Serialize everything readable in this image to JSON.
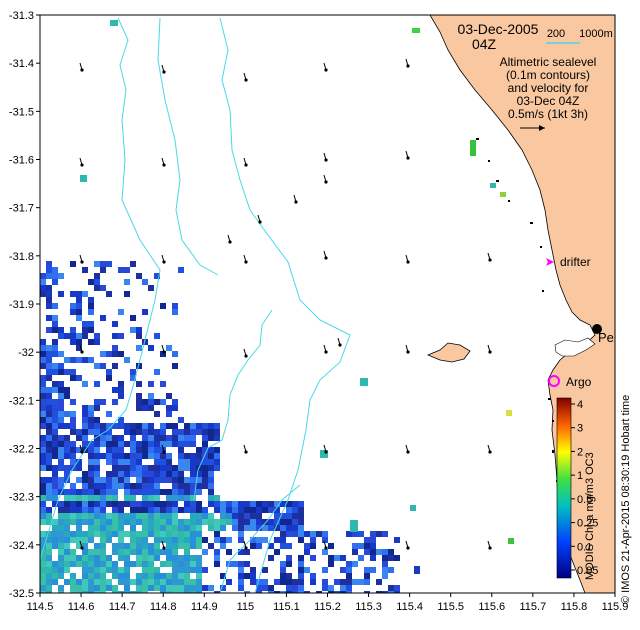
{
  "map": {
    "date": "03-Dec-2005",
    "time": "04Z",
    "lon_ticks": [
      "114.5",
      "114.6",
      "114.7",
      "114.8",
      "114.9",
      "115",
      "115.1",
      "115.2",
      "115.3",
      "115.4",
      "115.5",
      "115.6",
      "115.7",
      "115.8",
      "115.9"
    ],
    "lat_ticks": [
      "-31.3",
      "-31.4",
      "-31.5",
      "-31.6",
      "-31.7",
      "-31.8",
      "-31.9",
      "-32",
      "-32.1",
      "-32.2",
      "-32.3",
      "-32.4",
      "-32.5"
    ],
    "lon_range": [
      114.5,
      115.9
    ],
    "lat_range": [
      -32.5,
      -31.3
    ],
    "bathy_legend": {
      "shallow": "200",
      "deep": "1000m"
    },
    "description_lines": [
      "Altimetric sealevel",
      "(0.1m contours)",
      "and velocity for",
      "03-Dec 04Z",
      "0.5m/s (1kt 3h)"
    ],
    "labels": {
      "drifter": "drifter",
      "argo": "Argo",
      "perth": "Perth"
    },
    "colorbar": {
      "title": "MODIS Chl-a mg/m3 OC3",
      "ticks": [
        "4",
        "3",
        "2",
        "1",
        "0.5",
        "0.25",
        "0.1",
        "0.05"
      ]
    },
    "credit": "© IMOS 21-Apr-2015 08:30:19 Hobart time",
    "colors": {
      "land": "#f9c8a0",
      "contour": "#48d8e8",
      "drifter": "#ff00ff",
      "argo": "#ff00ff",
      "chl_low": "#1838c8",
      "chl_mid": "#30b8b0",
      "chl_high": "#b01818"
    }
  }
}
